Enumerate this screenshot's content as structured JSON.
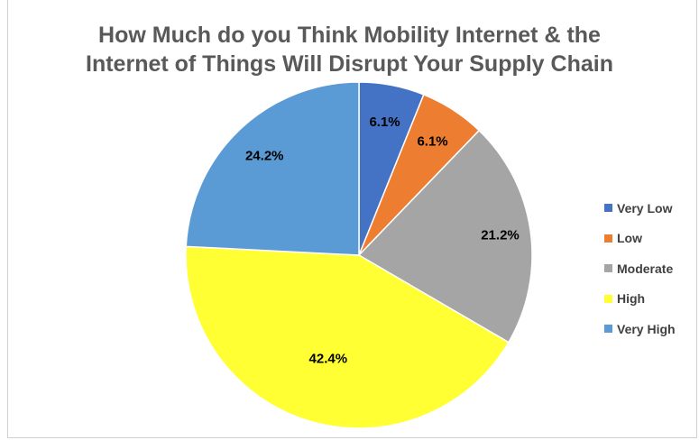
{
  "chart_data": {
    "type": "pie",
    "title": "How Much do you Think Mobility Internet & the Internet of Things Will Disrupt Your Supply Chain",
    "title_lines": [
      "How Much do you Think Mobility Internet & the",
      "Internet of Things Will Disrupt Your Supply Chain"
    ],
    "categories": [
      "Very Low",
      "Low",
      "Moderate",
      "High",
      "Very High"
    ],
    "values": [
      6.1,
      6.1,
      21.2,
      42.4,
      24.2
    ],
    "data_labels": [
      "6.1%",
      "6.1%",
      "21.2%",
      "42.4%",
      "24.2%"
    ],
    "colors": [
      "#4472C4",
      "#ED7D31",
      "#A5A5A5",
      "#FFFF33",
      "#5B9BD5"
    ],
    "legend_position": "right",
    "start_angle": "12 o'clock, clockwise"
  }
}
